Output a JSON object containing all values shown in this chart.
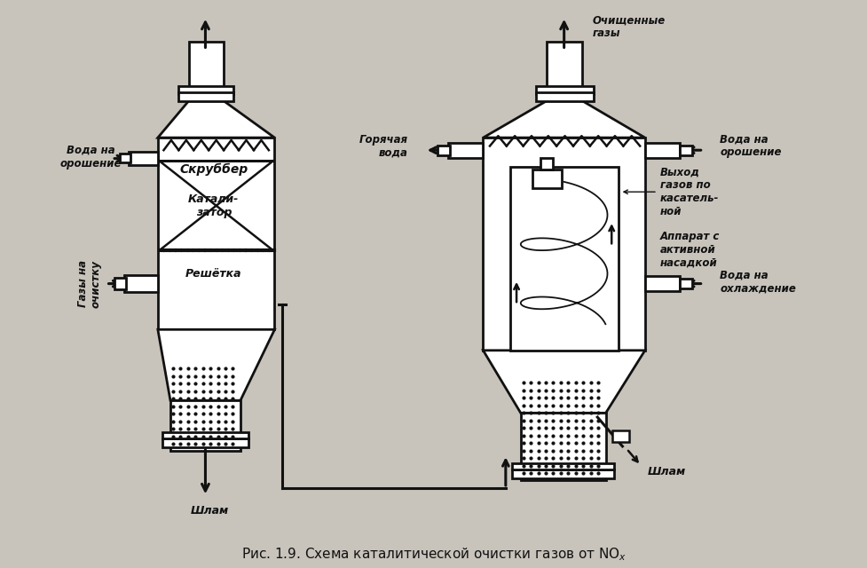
{
  "bg_color": "#c8c4bc",
  "line_color": "#111111",
  "lw": 1.8,
  "lw2": 2.2,
  "labels": {
    "scrubber": "Скруббер",
    "catalyst": "Катали-\nзатор",
    "grating": "Решётка",
    "shlam1": "Шлам",
    "gazy_ochistku": "Газы на\nочистку",
    "voda_oroshenie1": "Вода на\nорошение",
    "ochischennye_gazy": "Очищенные\nгазы",
    "goryachaya_voda": "Горячая\nвода",
    "voda_oroshenie2": "Вода на\nорошение",
    "vykhod_gazov": "Выход\nгазов по\nкасатель-\nной",
    "apparat": "Аппарат с\nактивной\nнасадкой",
    "voda_ohlagdenie": "Вода на\nохлаждение",
    "shlam2": "Шлам"
  }
}
